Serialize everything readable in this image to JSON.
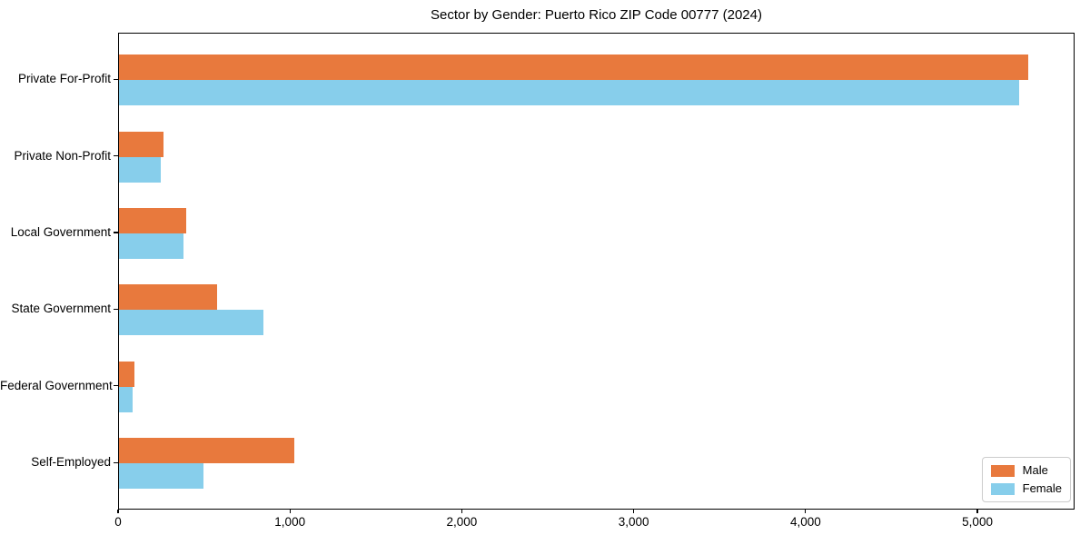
{
  "figure": {
    "background": "#ffffff",
    "axes_edge_color": "#000000"
  },
  "chart_data": {
    "type": "bar",
    "orientation": "horizontal",
    "title": "Sector by Gender: Puerto Rico ZIP Code 00777 (2024)",
    "xlabel": "",
    "ylabel": "",
    "categories": [
      "Private For-Profit",
      "Private Non-Profit",
      "Local Government",
      "State Government",
      "Federal Government",
      "Self-Employed"
    ],
    "series": [
      {
        "name": "Male",
        "color": "#E8793D",
        "values": [
          5300,
          260,
          390,
          570,
          90,
          1020
        ]
      },
      {
        "name": "Female",
        "color": "#87CEEB",
        "values": [
          5245,
          245,
          378,
          840,
          78,
          490
        ]
      }
    ],
    "xlim": [
      0,
      5565
    ],
    "xticks": [
      {
        "value": 0,
        "label": "0"
      },
      {
        "value": 1000,
        "label": "1,000"
      },
      {
        "value": 2000,
        "label": "2,000"
      },
      {
        "value": 3000,
        "label": "3,000"
      },
      {
        "value": 4000,
        "label": "4,000"
      },
      {
        "value": 5000,
        "label": "5,000"
      }
    ],
    "grid": false,
    "legend": {
      "position": "lower right"
    }
  }
}
